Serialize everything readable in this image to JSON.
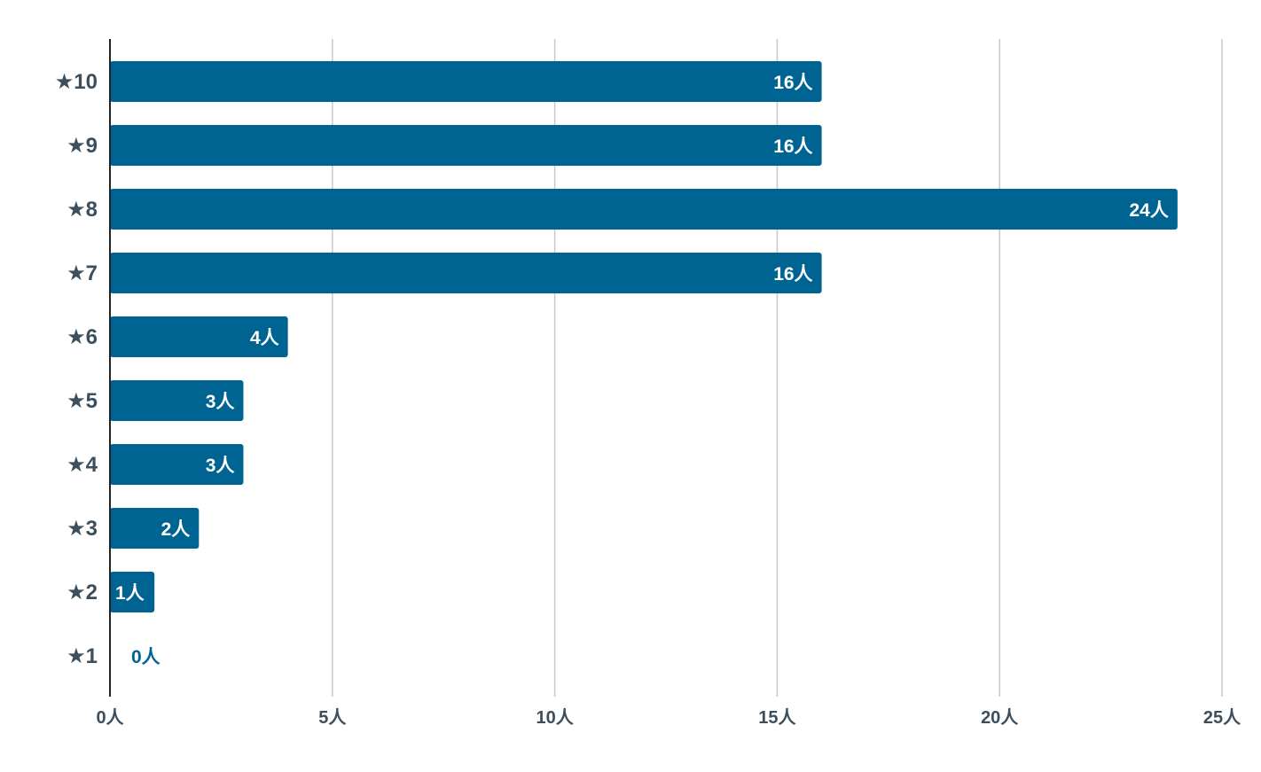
{
  "chart_data": {
    "type": "bar",
    "orientation": "horizontal",
    "title": "",
    "xlabel": "",
    "ylabel": "",
    "categories": [
      "★10",
      "★9",
      "★8",
      "★7",
      "★6",
      "★5",
      "★4",
      "★3",
      "★2",
      "★1"
    ],
    "values": [
      16,
      16,
      24,
      16,
      4,
      3,
      3,
      2,
      1,
      0
    ],
    "data_labels": [
      "16人",
      "16人",
      "24人",
      "16人",
      "4人",
      "3人",
      "3人",
      "2人",
      "1人",
      "0人"
    ],
    "xlim": [
      0,
      25
    ],
    "x_ticks": [
      0,
      5,
      10,
      15,
      20,
      25
    ],
    "x_tick_labels": [
      "0人",
      "5人",
      "10人",
      "15人",
      "20人",
      "25人"
    ],
    "grid": "vertical",
    "legend": "none",
    "colors": {
      "bar": "#006492",
      "bar_label_inside": "#ffffff",
      "bar_label_outside": "#006492",
      "axis_text": "#3d4f5c",
      "grid": "#c8c8c8",
      "axis_line": "#222222"
    }
  }
}
